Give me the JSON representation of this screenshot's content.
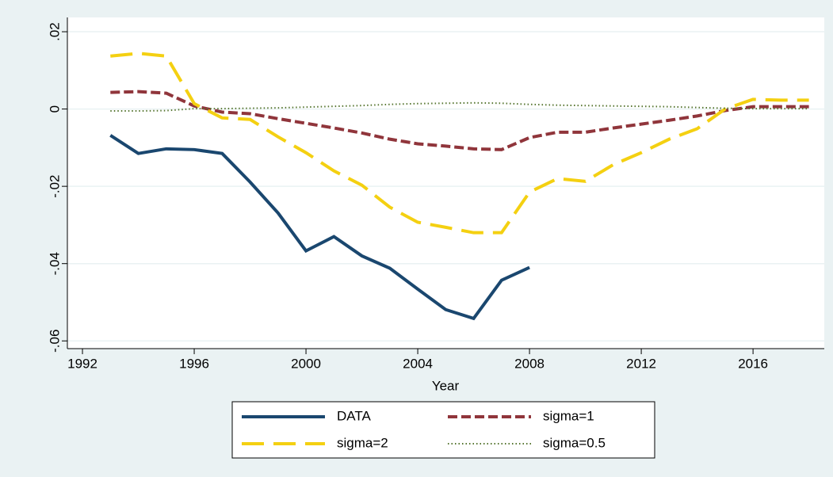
{
  "chart_data": {
    "type": "line",
    "x_label": "Year",
    "x": [
      1993,
      1994,
      1995,
      1996,
      1997,
      1998,
      1999,
      2000,
      2001,
      2002,
      2003,
      2004,
      2005,
      2006,
      2007,
      2008,
      2009,
      2010,
      2011,
      2012,
      2013,
      2014,
      2015,
      2016,
      2017,
      2018
    ],
    "series": [
      {
        "name": "DATA",
        "color": "#1a476f",
        "values": [
          -0.0068,
          -0.0115,
          -0.0103,
          -0.0105,
          -0.0115,
          -0.0189,
          -0.0269,
          -0.0367,
          -0.033,
          -0.038,
          -0.0412,
          -0.0466,
          -0.0519,
          -0.0542,
          -0.0443,
          -0.041,
          null,
          null,
          null,
          null,
          null,
          null,
          null,
          null,
          null,
          null
        ]
      },
      {
        "name": "sigma=1",
        "color": "#90353b",
        "values": [
          0.0043,
          0.0045,
          0.0041,
          0.0008,
          -0.0008,
          -0.0012,
          -0.0025,
          -0.0037,
          -0.0049,
          -0.0062,
          -0.0078,
          -0.009,
          -0.0096,
          -0.0103,
          -0.0105,
          -0.0074,
          -0.006,
          -0.006,
          -0.0049,
          -0.0039,
          -0.0029,
          -0.0018,
          -0.0004,
          0.0006,
          0.0006,
          0.0006
        ]
      },
      {
        "name": "sigma=2",
        "color": "#f4d011",
        "values": [
          0.0137,
          0.0144,
          0.0137,
          0.0014,
          -0.0023,
          -0.0027,
          -0.0072,
          -0.0113,
          -0.016,
          -0.0197,
          -0.0254,
          -0.0293,
          -0.0306,
          -0.032,
          -0.032,
          -0.0215,
          -0.018,
          -0.0187,
          -0.0144,
          -0.0113,
          -0.0078,
          -0.0051,
          0,
          0.0025,
          0.0023,
          0.0023
        ]
      },
      {
        "name": "sigma=0.5",
        "color": "#55752f",
        "values": [
          -0.0005,
          -0.0005,
          -0.0004,
          0.0001,
          0.0001,
          0.0002,
          0.0003,
          0.0005,
          0.0007,
          0.0009,
          0.0012,
          0.0014,
          0.0015,
          0.0016,
          0.0015,
          0.0012,
          0.001,
          0.0009,
          0.0008,
          0.0007,
          0.0006,
          0.0004,
          0.0002,
          0.0001,
          0.0001,
          0.0001
        ]
      }
    ],
    "xlim": [
      1991.46,
      2018.55
    ],
    "xticks": [
      1992,
      1996,
      2000,
      2004,
      2008,
      2012,
      2016
    ],
    "ylim": [
      -0.062,
      0.0237
    ],
    "yticks": [
      {
        "value": -0.06,
        "label": "-.06"
      },
      {
        "value": -0.04,
        "label": "-.04"
      },
      {
        "value": -0.02,
        "label": "-.02"
      },
      0,
      {
        "value": 0.02,
        "label": ".02"
      }
    ],
    "grid": true,
    "legend": "bottom"
  }
}
